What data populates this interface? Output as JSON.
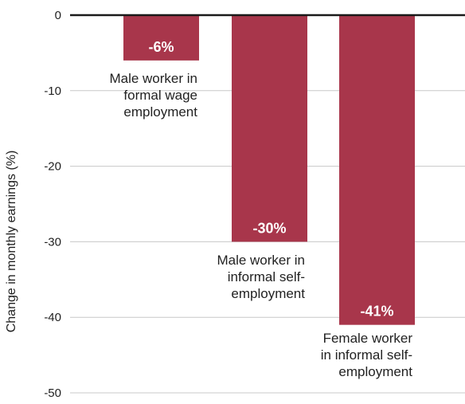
{
  "chart_data": {
    "type": "bar",
    "categories": [
      "Male worker in formal wage employment",
      "Male worker in informal self-employment",
      "Female worker in informal self-employment"
    ],
    "category_label_lines": [
      [
        "Male worker in",
        "formal wage",
        "employment"
      ],
      [
        "Male worker in",
        "informal self-",
        "employment"
      ],
      [
        "Female worker",
        "in informal self-",
        "employment"
      ]
    ],
    "values": [
      -6,
      -30,
      -41
    ],
    "data_labels": [
      "-6%",
      "-30%",
      "-41%"
    ],
    "title": "",
    "xlabel": "",
    "ylabel": "Change in monthly earnings (%)",
    "ylim": [
      -50,
      0
    ],
    "y_ticks": [
      0,
      -10,
      -20,
      -30,
      -40,
      -50
    ],
    "y_tick_labels": [
      "0",
      "-10",
      "-20",
      "-30",
      "-40",
      "-50"
    ],
    "grid": true,
    "legend": "none",
    "bar_color": "#A8364B",
    "zero_line_color": "#1a1a1a",
    "grid_color": "#c8c8c8"
  }
}
